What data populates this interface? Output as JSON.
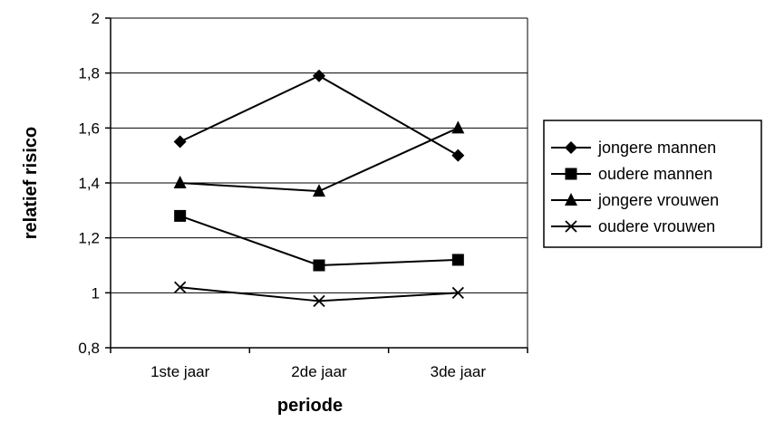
{
  "chart_data": {
    "type": "line",
    "categories": [
      "1ste jaar",
      "2de jaar",
      "3de jaar"
    ],
    "xlabel": "periode",
    "ylabel": "relatief risico",
    "ylim": [
      0.8,
      2
    ],
    "yticks": [
      "0,8",
      "1",
      "1,2",
      "1,4",
      "1,6",
      "1,8",
      "2"
    ],
    "ytick_values": [
      0.8,
      1.0,
      1.2,
      1.4,
      1.6,
      1.8,
      2.0
    ],
    "grid": true,
    "legend_position": "right",
    "series": [
      {
        "name": "jongere mannen",
        "marker": "diamond",
        "values": [
          1.55,
          1.79,
          1.5
        ]
      },
      {
        "name": "oudere mannen",
        "marker": "square",
        "values": [
          1.28,
          1.1,
          1.12
        ]
      },
      {
        "name": "jongere vrouwen",
        "marker": "triangle",
        "values": [
          1.4,
          1.37,
          1.6
        ]
      },
      {
        "name": "oudere vrouwen",
        "marker": "x",
        "values": [
          1.02,
          0.97,
          1.0
        ]
      }
    ],
    "line_color": "#000000",
    "grid_color": "#000000"
  }
}
